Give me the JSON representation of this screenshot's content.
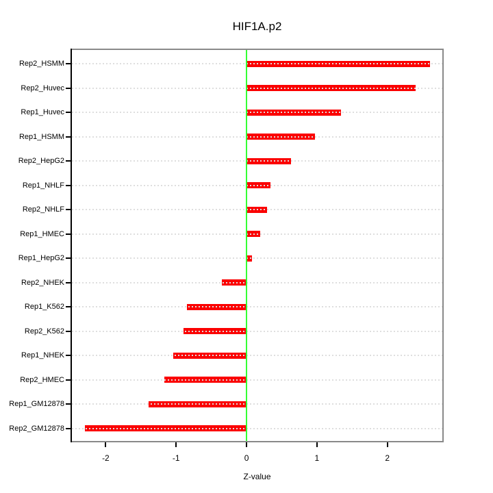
{
  "title": "HIF1A.p2",
  "chart_data": {
    "type": "bar",
    "orientation": "horizontal",
    "title": "HIF1A.p2",
    "xlabel": "Z-value",
    "ylabel": "",
    "categories": [
      "Rep2_HSMM",
      "Rep2_Huvec",
      "Rep1_Huvec",
      "Rep1_HSMM",
      "Rep2_HepG2",
      "Rep1_NHLF",
      "Rep2_NHLF",
      "Rep1_HMEC",
      "Rep1_HepG2",
      "Rep2_NHEK",
      "Rep1_K562",
      "Rep2_K562",
      "Rep1_NHEK",
      "Rep2_HMEC",
      "Rep1_GM12878",
      "Rep2_GM12878"
    ],
    "values": [
      2.61,
      2.4,
      1.34,
      0.97,
      0.63,
      0.34,
      0.29,
      0.19,
      0.08,
      -0.35,
      -0.85,
      -0.9,
      -1.04,
      -1.17,
      -1.39,
      -2.3
    ],
    "x_ticks": [
      -2,
      -1,
      0,
      1,
      2
    ],
    "x_tick_labels": [
      "-2",
      "-1",
      "0",
      "1",
      "2"
    ],
    "xlim": [
      -2.5,
      2.8
    ],
    "grid": true,
    "legend": "none",
    "colors": {
      "bar": "#fb0000",
      "zero_line": "#33ff33",
      "gridline": "#dedede",
      "box": "#898989",
      "axis": "#000000",
      "background": "#ffffff"
    }
  }
}
